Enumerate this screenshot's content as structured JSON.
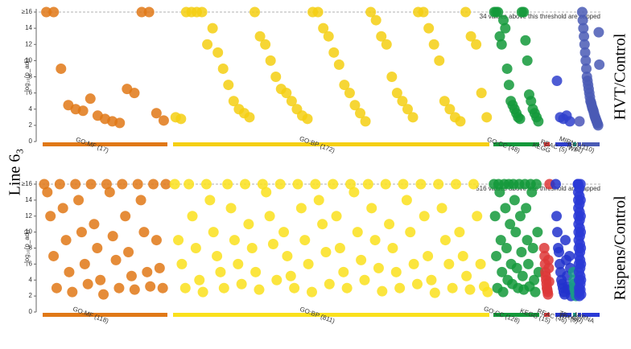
{
  "chart_data": {
    "type": "manhattan",
    "title": "Line 6₃",
    "panels": [
      {
        "label": "HVT/Control",
        "y_label": "−log₁₀(p_adj)",
        "ylim": [
          0,
          16
        ],
        "yticks": [
          0,
          2,
          4,
          6,
          8,
          10,
          12,
          14,
          {
            "value": 16,
            "label": "≥16"
          }
        ],
        "threshold_note": "34 values above this threshold are capped",
        "sources": [
          {
            "name": "GO:MF (17)",
            "color": "#e07816",
            "values": [
              16,
              16,
              9,
              4.5,
              4,
              3.8,
              5.3,
              3.2,
              2.8,
              2.5,
              2.3,
              6.5,
              6,
              16,
              16,
              3.5,
              2.6
            ]
          },
          {
            "name": "GO:BP (172)",
            "color": "#f5cf12",
            "values": [
              3,
              2.8,
              16,
              16,
              16,
              16,
              12,
              14,
              11,
              9,
              7,
              5,
              4,
              3.5,
              3,
              16,
              13,
              12,
              10,
              8,
              6.5,
              6,
              5,
              4,
              3.2,
              2.8,
              16,
              16,
              14,
              13,
              11,
              9.5,
              7,
              6,
              4.5,
              3.5,
              2.5,
              16,
              15,
              13,
              12,
              8,
              6,
              5,
              4,
              3,
              16,
              16,
              14,
              12,
              10,
              5,
              4,
              3,
              2.5,
              16,
              13,
              12,
              6,
              3
            ]
          },
          {
            "name": "GO:CC (48)",
            "color": "#13993a",
            "values": [
              16,
              16,
              16,
              13,
              12,
              15,
              14,
              9,
              7,
              5,
              4.5,
              4,
              3.5,
              3,
              2.8,
              16,
              16,
              12.5,
              10,
              5.8,
              5,
              4,
              3.5,
              3,
              2.5
            ]
          },
          {
            "name": "KEGG",
            "color": "#dd3838",
            "values": []
          },
          {
            "name": "REAC (5)",
            "color": "#2f3fcc",
            "values": [
              7.5,
              3,
              2.8,
              3.2,
              2.5
            ]
          },
          {
            "name": "WP",
            "color": "#1a9a88",
            "values": []
          },
          {
            "name": "TF (1)",
            "color": "#4a55b8",
            "values": [
              2.5
            ]
          },
          {
            "name": "MIRNA (110)",
            "color": "#4a5bb5",
            "values": [
              16,
              15,
              14,
              13,
              12,
              11,
              10,
              9,
              8,
              7.5,
              7,
              6.5,
              6,
              5.5,
              5,
              4.8,
              4.5,
              4.2,
              4,
              3.8,
              3.5,
              3.2,
              3,
              2.8,
              2.6,
              2.4,
              2.2,
              2,
              13.5,
              9.5
            ]
          }
        ]
      },
      {
        "label": "Rispens/Control",
        "y_label": "−log₁₀(p_adj)",
        "ylim": [
          0,
          16
        ],
        "yticks": [
          0,
          2,
          4,
          6,
          8,
          10,
          12,
          14,
          {
            "value": 16,
            "label": "≥16"
          }
        ],
        "threshold_note": "516 values above this threshold are capped",
        "sources": [
          {
            "name": "GO:MF (118)",
            "color": "#e07816",
            "values": [
              16,
              15,
              12,
              7,
              3,
              16,
              13,
              9,
              5,
              2.5,
              16,
              14,
              10,
              6,
              3.5,
              16,
              11,
              8,
              4,
              2.2,
              16,
              15,
              9.5,
              6.5,
              3,
              16,
              12,
              7.5,
              4.5,
              2.8,
              16,
              14,
              10,
              5,
              3.2,
              16,
              9,
              5.5,
              3,
              16
            ]
          },
          {
            "name": "GO:BP (811)",
            "color": "#fae01c",
            "values": [
              16,
              9,
              6,
              3,
              16,
              12,
              8,
              4,
              2.5,
              16,
              14,
              10,
              7,
              5,
              3,
              16,
              13,
              9,
              6,
              3.5,
              16,
              11,
              8,
              5,
              2.8,
              16,
              15,
              12,
              8.5,
              4,
              16,
              10,
              7,
              4.5,
              3,
              16,
              13,
              9,
              6,
              2.5,
              16,
              14,
              11,
              7.5,
              3.5,
              16,
              12,
              8,
              5,
              3,
              16,
              15,
              10,
              6.5,
              4,
              16,
              13,
              9,
              5.5,
              2.6,
              16,
              11,
              8,
              5,
              3,
              16,
              14,
              10,
              6,
              3.5,
              16,
              12,
              7,
              4,
              2.4,
              16,
              13,
              9,
              6,
              3,
              16,
              10,
              7,
              4.5,
              2.8,
              16,
              12,
              6,
              3.2,
              2.5
            ]
          },
          {
            "name": "GO:CC (128)",
            "color": "#13993a",
            "values": [
              16,
              12,
              7,
              3,
              16,
              15,
              9,
              5,
              2.5,
              16,
              13,
              8,
              4,
              16,
              11,
              6,
              3.5,
              16,
              14,
              10,
              5.5,
              3,
              16,
              12,
              7.5,
              4.5,
              2.8,
              16,
              13,
              9,
              6,
              3.2,
              16,
              15,
              8,
              4,
              2.5,
              16,
              10,
              5
            ]
          },
          {
            "name": "KEGG (15)",
            "color": "#dd3838",
            "values": [
              8,
              7,
              6,
              5,
              4.5,
              4,
              3.5,
              3,
              2.8,
              2.5,
              2.2,
              6.5,
              5.5,
              3.8,
              16
            ]
          },
          {
            "name": "REAC (46)",
            "color": "#2233cc",
            "values": [
              16,
              12,
              10,
              8,
              7.5,
              6,
              5,
              4,
              3.5,
              3,
              2.5,
              2.2,
              9,
              6.5,
              4.5,
              3.2,
              2.8,
              7,
              5.5,
              2
            ]
          },
          {
            "name": "WP (8)",
            "color": "#1a9a88",
            "values": [
              5,
              4,
              3.5,
              3,
              2.8,
              2.5,
              2.2,
              2
            ]
          },
          {
            "name": "TF (489)",
            "color": "#2a3ad6",
            "values": [
              16,
              16,
              16,
              15,
              14,
              13,
              12,
              11,
              10,
              9,
              8,
              7,
              6,
              5,
              4,
              3,
              2.5,
              2,
              15.5,
              14.5,
              13.5,
              12.5,
              11.5,
              10.5,
              9.5,
              8.5,
              7.5,
              6.5,
              5.5,
              4.5,
              3.5,
              2.8,
              16,
              14,
              12,
              10,
              8,
              6,
              4,
              2.2
            ]
          },
          {
            "name": "MIRNA",
            "color": "#2a3ad6",
            "values": []
          }
        ]
      }
    ]
  }
}
